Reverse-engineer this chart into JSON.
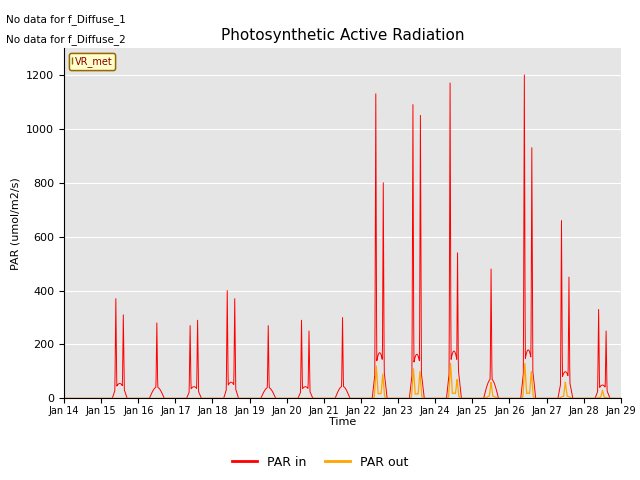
{
  "title": "Photosynthetic Active Radiation",
  "ylabel": "PAR (umol/m2/s)",
  "xlabel": "Time",
  "no_data_text_1": "No data for f_Diffuse_1",
  "no_data_text_2": "No data for f_Diffuse_2",
  "legend_label": "VR_met",
  "legend_line_labels": [
    "PAR in",
    "PAR out"
  ],
  "par_in_color": "#FF0000",
  "par_out_color": "#FFA500",
  "background_color": "#E5E5E5",
  "ylim": [
    0,
    1300
  ],
  "yticks": [
    0,
    200,
    400,
    600,
    800,
    1000,
    1200
  ],
  "num_days": 15,
  "start_day": 14,
  "figsize": [
    6.4,
    4.8
  ],
  "dpi": 100
}
